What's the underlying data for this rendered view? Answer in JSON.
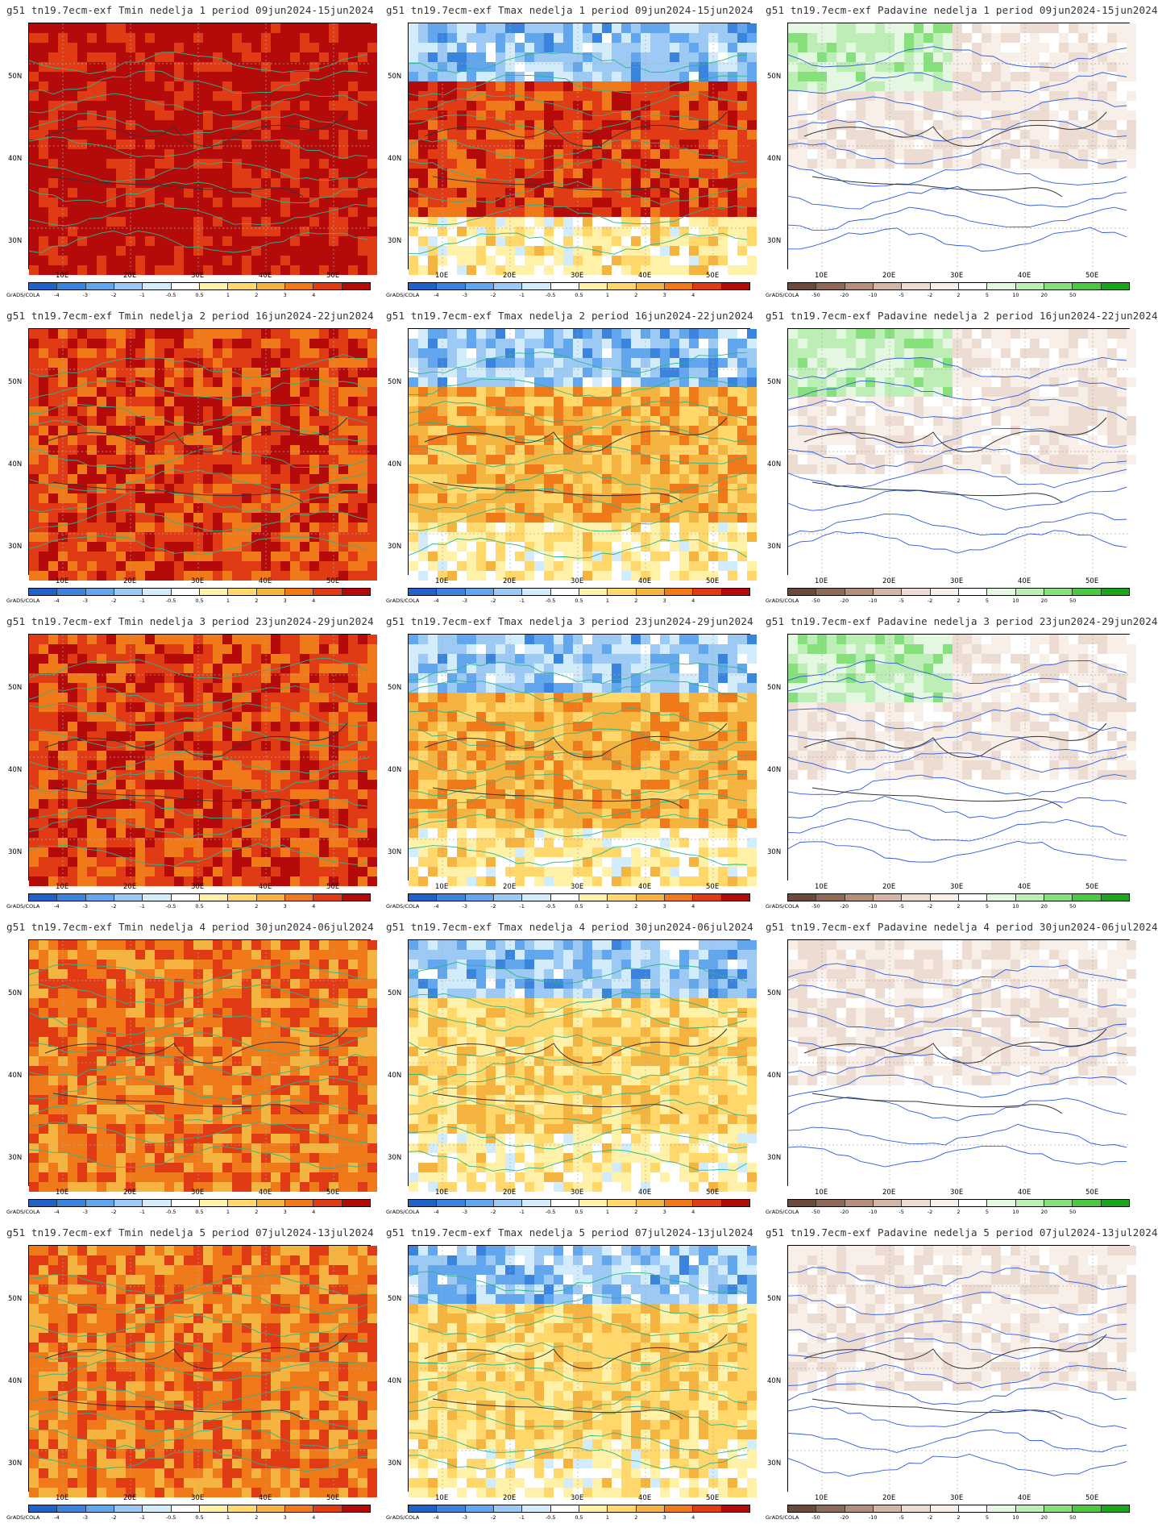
{
  "footer_label": "GrADS/COLA",
  "lat_labels": [
    "50N",
    "40N",
    "30N"
  ],
  "lon_labels": [
    "10E",
    "20E",
    "30E",
    "40E",
    "50E"
  ],
  "temp_legend": {
    "labels": [
      "-4",
      "-3",
      "-2",
      "-1",
      "-0.5",
      "0.5",
      "1",
      "2",
      "3",
      "4"
    ],
    "colors": [
      "#1f63c9",
      "#3a84de",
      "#62a6ee",
      "#9dcaf5",
      "#d3ecfb",
      "#ffffff",
      "#fff2a8",
      "#ffd76b",
      "#f5b340",
      "#f07a1a",
      "#e03b14",
      "#b50a0a"
    ]
  },
  "precip_legend": {
    "labels": [
      "-50",
      "-20",
      "-10",
      "-5",
      "-2",
      "2",
      "5",
      "10",
      "20",
      "50"
    ],
    "colors": [
      "#6b4a3a",
      "#8e6a56",
      "#b38f7c",
      "#d4b6a6",
      "#ecdcd2",
      "#f8efe9",
      "#ffffff",
      "#e4f7e1",
      "#bdeeb5",
      "#86e07c",
      "#4cc943",
      "#1aa51a"
    ]
  },
  "rows": [
    {
      "week": 1,
      "period": "09jun2024-15jun2024",
      "titles": [
        "g51 tn19.7ecm-exf Tmin nedelja 1 period 09jun2024-15jun2024",
        "g51 tn19.7ecm-exf Tmax nedelja 1 period 09jun2024-15jun2024",
        "g51 tn19.7ecm-exf Padavine nedelja 1 period 09jun2024-15jun2024"
      ],
      "tmin_level": 4,
      "tmax_level": 3,
      "precip_level": -1
    },
    {
      "week": 2,
      "period": "16jun2024-22jun2024",
      "titles": [
        "g51 tn19.7ecm-exf Tmin nedelja 2 period 16jun2024-22jun2024",
        "g51 tn19.7ecm-exf Tmax nedelja 2 period 16jun2024-22jun2024",
        "g51 tn19.7ecm-exf Padavine nedelja 2 period 16jun2024-22jun2024"
      ],
      "tmin_level": 3,
      "tmax_level": 1,
      "precip_level": -1
    },
    {
      "week": 3,
      "period": "23jun2024-29jun2024",
      "titles": [
        "g51 tn19.7ecm-exf Tmin nedelja 3 period 23jun2024-29jun2024",
        "g51 tn19.7ecm-exf Tmax nedelja 3 period 23jun2024-29jun2024",
        "g51 tn19.7ecm-exf Padavine nedelja 3 period 23jun2024-29jun2024"
      ],
      "tmin_level": 3,
      "tmax_level": 1,
      "precip_level": -1
    },
    {
      "week": 4,
      "period": "30jun2024-06jul2024",
      "titles": [
        "g51 tn19.7ecm-exf Tmin nedelja 4 period 30jun2024-06jul2024",
        "g51 tn19.7ecm-exf Tmax nedelja 4 period 30jun2024-06jul2024",
        "g51 tn19.7ecm-exf Padavine nedelja 4 period 30jun2024-06jul2024"
      ],
      "tmin_level": 2,
      "tmax_level": 0,
      "precip_level": 0
    },
    {
      "week": 5,
      "period": "07jul2024-13jul2024",
      "titles": [
        "g51 tn19.7ecm-exf Tmin nedelja 5 period 07jul2024-13jul2024",
        "g51 tn19.7ecm-exf Tmax nedelja 5 period 07jul2024-13jul2024",
        "g51 tn19.7ecm-exf Padavine nedelja 5 period 07jul2024-13jul2024"
      ],
      "tmin_level": 2,
      "tmax_level": 0,
      "precip_level": 0
    }
  ]
}
